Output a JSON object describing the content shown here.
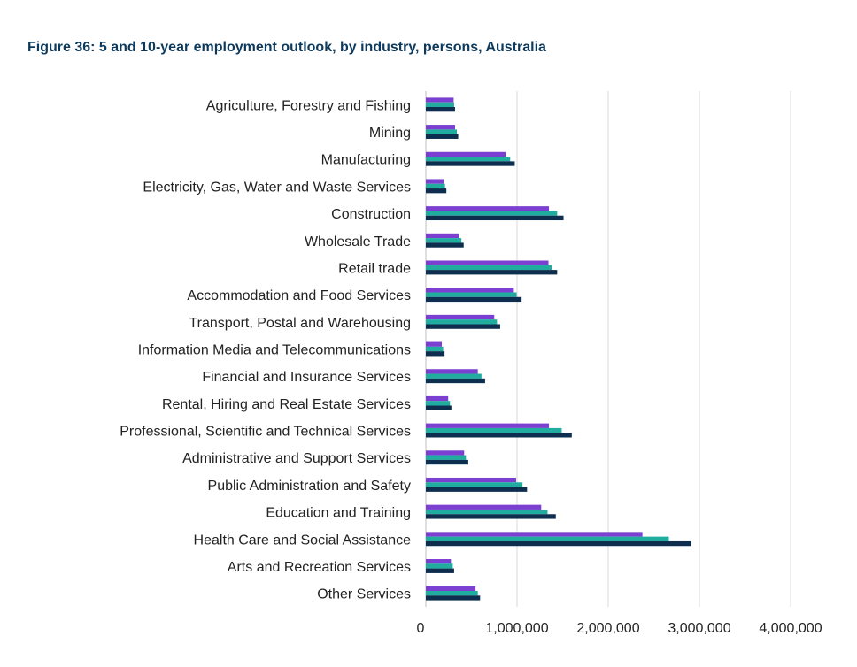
{
  "chart_data": {
    "type": "bar",
    "orientation": "horizontal",
    "title": "Figure 36: 5 and 10-year employment outlook, by industry, persons, Australia",
    "categories": [
      "Agriculture, Forestry and Fishing",
      "Mining",
      "Manufacturing",
      "Electricity, Gas, Water and Waste Services",
      "Construction",
      "Wholesale Trade",
      "Retail trade",
      "Accommodation and Food Services",
      "Transport, Postal and Warehousing",
      "Information Media and Telecommunications",
      "Financial and Insurance Services",
      "Rental, Hiring and Real Estate Services",
      "Professional, Scientific and Technical Services",
      "Administrative and Support Services",
      "Public Administration and Safety",
      "Education and Training",
      "Health Care and Social Assistance",
      "Arts and Recreation Services",
      "Other Services"
    ],
    "series": [
      {
        "color": "#7b3fd1",
        "values": [
          305000,
          320000,
          875000,
          195000,
          1350000,
          360000,
          1345000,
          965000,
          750000,
          175000,
          570000,
          245000,
          1350000,
          420000,
          990000,
          1265000,
          2375000,
          275000,
          545000
        ]
      },
      {
        "color": "#20ada0",
        "values": [
          310000,
          340000,
          925000,
          210000,
          1440000,
          390000,
          1380000,
          995000,
          780000,
          190000,
          610000,
          265000,
          1490000,
          440000,
          1060000,
          1335000,
          2665000,
          295000,
          570000
        ]
      },
      {
        "color": "#0d2e4f",
        "values": [
          320000,
          355000,
          975000,
          225000,
          1510000,
          415000,
          1440000,
          1050000,
          815000,
          205000,
          650000,
          280000,
          1600000,
          465000,
          1110000,
          1425000,
          2910000,
          310000,
          595000
        ]
      }
    ],
    "xlim": [
      0,
      4000000
    ],
    "xticks": [
      0,
      1000000,
      2000000,
      3000000,
      4000000
    ],
    "xtick_labels": [
      "0",
      "1,000,000",
      "2,000,000",
      "3,000,000",
      "4,000,000"
    ],
    "grid": "vertical",
    "legend": "none"
  }
}
